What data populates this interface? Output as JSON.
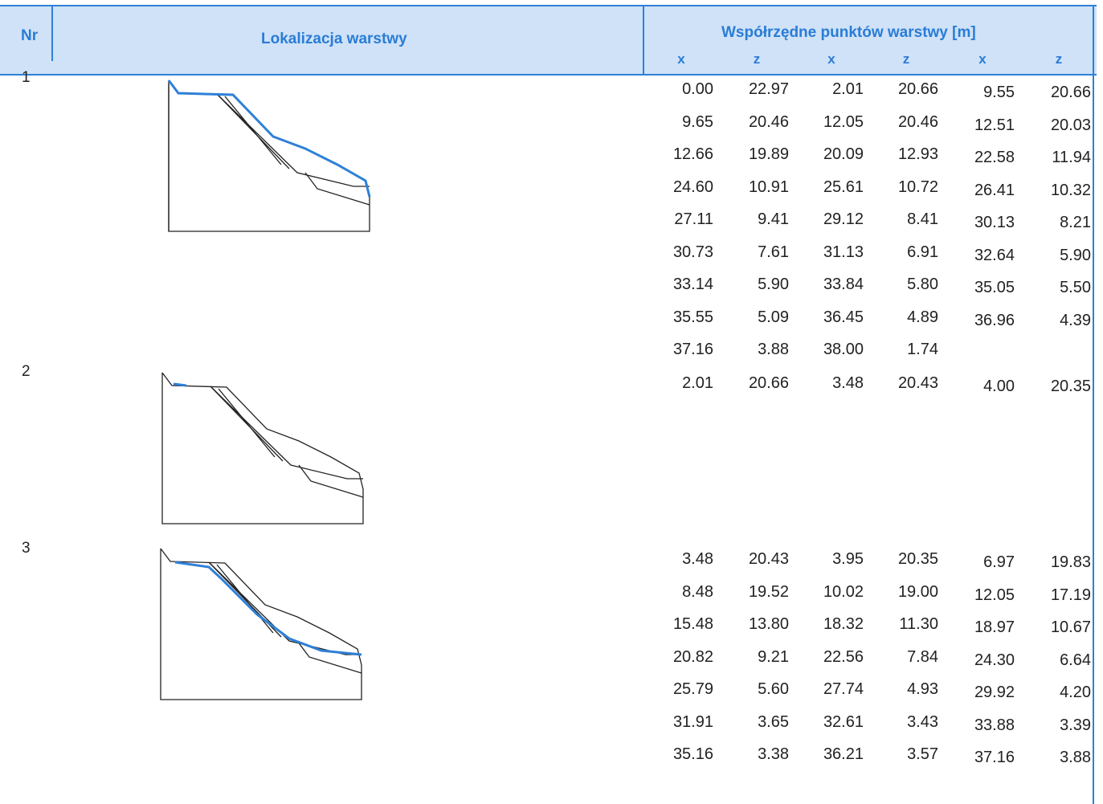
{
  "header": {
    "nr": "Nr",
    "location": "Lokalizacja warstwy",
    "coordinates": "Współrzędne punktów warstwy [m]",
    "subheaders": [
      "x",
      "z",
      "x",
      "z",
      "x",
      "z"
    ]
  },
  "layers": [
    {
      "nr": "1",
      "rows": [
        [
          "0.00",
          "22.97",
          "2.01",
          "20.66",
          "9.55",
          "20.66"
        ],
        [
          "9.65",
          "20.46",
          "12.05",
          "20.46",
          "12.51",
          "20.03"
        ],
        [
          "12.66",
          "19.89",
          "20.09",
          "12.93",
          "22.58",
          "11.94"
        ],
        [
          "24.60",
          "10.91",
          "25.61",
          "10.72",
          "26.41",
          "10.32"
        ],
        [
          "27.11",
          "9.41",
          "29.12",
          "8.41",
          "30.13",
          "8.21"
        ],
        [
          "30.73",
          "7.61",
          "31.13",
          "6.91",
          "32.64",
          "5.90"
        ],
        [
          "33.14",
          "5.90",
          "33.84",
          "5.80",
          "35.05",
          "5.50"
        ],
        [
          "35.55",
          "5.09",
          "36.45",
          "4.89",
          "36.96",
          "4.39"
        ],
        [
          "37.16",
          "3.88",
          "38.00",
          "1.74"
        ]
      ]
    },
    {
      "nr": "2",
      "rows": [
        [
          "2.01",
          "20.66",
          "3.48",
          "20.43",
          "4.00",
          "20.35"
        ]
      ]
    },
    {
      "nr": "3",
      "rows": [
        [
          "3.48",
          "20.43",
          "3.95",
          "20.35",
          "6.97",
          "19.83"
        ],
        [
          "8.48",
          "19.52",
          "10.02",
          "19.00",
          "12.05",
          "17.19"
        ],
        [
          "15.48",
          "13.80",
          "18.32",
          "11.30",
          "18.97",
          "10.67"
        ],
        [
          "20.82",
          "9.21",
          "22.56",
          "7.84",
          "24.30",
          "6.64"
        ],
        [
          "25.79",
          "5.60",
          "27.74",
          "4.93",
          "29.92",
          "4.20"
        ],
        [
          "31.91",
          "3.65",
          "32.61",
          "3.43",
          "33.88",
          "3.39"
        ],
        [
          "35.16",
          "3.38",
          "36.21",
          "3.57",
          "37.16",
          "3.88"
        ]
      ]
    }
  ]
}
